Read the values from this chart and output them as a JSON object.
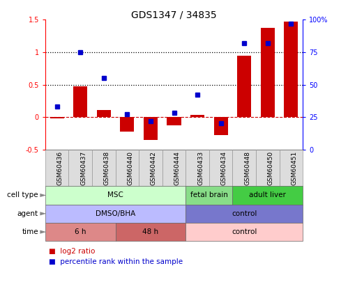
{
  "title": "GDS1347 / 34835",
  "samples": [
    "GSM60436",
    "GSM60437",
    "GSM60438",
    "GSM60440",
    "GSM60442",
    "GSM60444",
    "GSM60433",
    "GSM60434",
    "GSM60448",
    "GSM60450",
    "GSM60451"
  ],
  "log2_ratio": [
    -0.02,
    0.47,
    0.11,
    -0.22,
    -0.35,
    -0.13,
    0.03,
    -0.28,
    0.95,
    1.38,
    1.47
  ],
  "percentile_rank": [
    33,
    75,
    55,
    27,
    22,
    28,
    42,
    20,
    82,
    82,
    97
  ],
  "bar_color": "#cc0000",
  "dot_color": "#0000cc",
  "ylim_left": [
    -0.5,
    1.5
  ],
  "ylim_right": [
    0,
    100
  ],
  "yticks_left": [
    -0.5,
    0,
    0.5,
    1.0,
    1.5
  ],
  "yticks_right": [
    0,
    25,
    50,
    75,
    100
  ],
  "ytick_labels_left": [
    "-0.5",
    "0",
    "0.5",
    "1",
    "1.5"
  ],
  "ytick_labels_right": [
    "0",
    "25",
    "50",
    "75",
    "100%"
  ],
  "hlines_dotted": [
    0.5,
    1.0
  ],
  "hline_dashed": 0.0,
  "cell_type_groups": [
    {
      "label": "MSC",
      "start": 0,
      "end": 6,
      "color": "#ccffcc"
    },
    {
      "label": "fetal brain",
      "start": 6,
      "end": 8,
      "color": "#88dd88"
    },
    {
      "label": "adult liver",
      "start": 8,
      "end": 11,
      "color": "#44cc44"
    }
  ],
  "agent_groups": [
    {
      "label": "DMSO/BHA",
      "start": 0,
      "end": 6,
      "color": "#bbbbff"
    },
    {
      "label": "control",
      "start": 6,
      "end": 11,
      "color": "#7777cc"
    }
  ],
  "time_groups": [
    {
      "label": "6 h",
      "start": 0,
      "end": 3,
      "color": "#dd8888"
    },
    {
      "label": "48 h",
      "start": 3,
      "end": 6,
      "color": "#cc6666"
    },
    {
      "label": "control",
      "start": 6,
      "end": 11,
      "color": "#ffcccc"
    }
  ],
  "row_labels": [
    "cell type",
    "agent",
    "time"
  ],
  "legend_red": "log2 ratio",
  "legend_blue": "percentile rank within the sample",
  "legend_red_color": "#cc0000",
  "legend_blue_color": "#0000cc"
}
